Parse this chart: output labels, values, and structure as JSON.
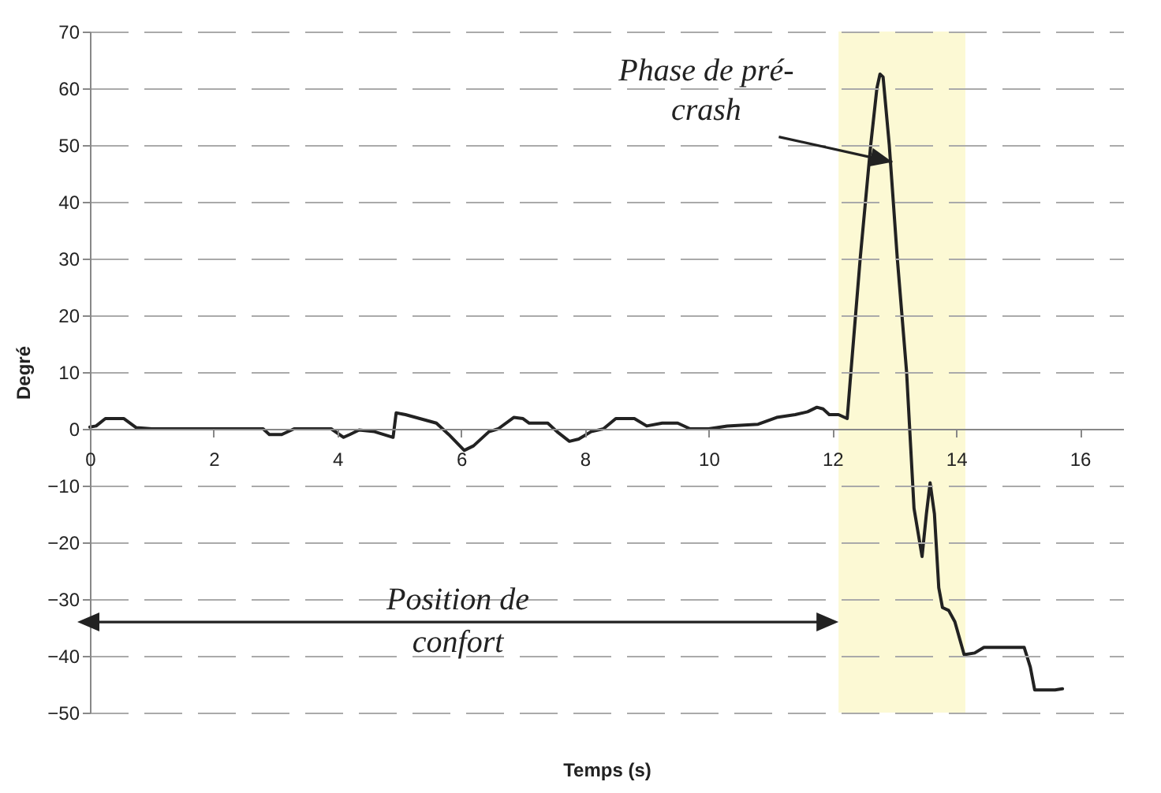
{
  "chart_data": {
    "type": "line",
    "xlabel": "Temps (s)",
    "ylabel": "Degré",
    "xlim": [
      0,
      16.7
    ],
    "xticks": [
      0,
      2,
      4,
      6,
      8,
      10,
      12,
      14,
      16
    ],
    "ylim": [
      -50,
      70
    ],
    "yticks": [
      -50,
      -40,
      -30,
      -20,
      -10,
      0,
      10,
      20,
      30,
      40,
      50,
      60,
      70
    ],
    "grid": "y",
    "series": [
      {
        "color": "#222222",
        "x": [
          0,
          0.1,
          0.25,
          0.55,
          0.75,
          1,
          2,
          2.8,
          2.9,
          3.1,
          3.3,
          3.9,
          4.1,
          4.2,
          4.35,
          4.6,
          4.9,
          4.95,
          5.1,
          5.6,
          5.8,
          6.05,
          6.2,
          6.45,
          6.6,
          6.85,
          7.0,
          7.1,
          7.4,
          7.55,
          7.75,
          7.9,
          8.1,
          8.3,
          8.5,
          8.8,
          9,
          9.25,
          9.5,
          9.7,
          10,
          10.3,
          10.8,
          11.1,
          11.4,
          11.6,
          11.75,
          11.85,
          11.95,
          12.1,
          12.24,
          12.3,
          12.45,
          12.62,
          12.72,
          12.77,
          12.82,
          12.92,
          13.05,
          13.2,
          13.25,
          13.32,
          13.45,
          13.52,
          13.58,
          13.65,
          13.72,
          13.78,
          13.88,
          13.98,
          14.13,
          14.3,
          14.45,
          15.1,
          15.2,
          15.27,
          15.6,
          15.72
        ],
        "values": [
          0.3,
          0.5,
          1.8,
          1.8,
          0.2,
          0,
          0,
          0,
          -1,
          -1,
          0,
          0,
          -1.5,
          -1,
          -0.2,
          -0.5,
          -1.5,
          2.8,
          2.5,
          1,
          -1,
          -3.8,
          -3,
          -0.5,
          0,
          2,
          1.8,
          1,
          1,
          -0.5,
          -2.2,
          -1.8,
          -0.5,
          0,
          1.8,
          1.8,
          0.5,
          1,
          1,
          0,
          0,
          0.5,
          0.8,
          2,
          2.5,
          3,
          3.8,
          3.5,
          2.5,
          2.5,
          1.8,
          10,
          30,
          50,
          60,
          62.5,
          62,
          50,
          30,
          10,
          0,
          -14,
          -22.5,
          -15,
          -9.5,
          -15,
          -28,
          -31.5,
          -32,
          -34,
          -39.8,
          -39.5,
          -38.5,
          -38.5,
          -42,
          -46,
          -46,
          -45.8
        ]
      }
    ],
    "bands": [
      {
        "axis": "x",
        "from": 12.1,
        "to": 14.15,
        "color": "#fcf9d4"
      }
    ],
    "annotations": [
      {
        "text": "Phase de pré-crash",
        "x": 12.97,
        "y": 47
      },
      "Position de confort"
    ]
  }
}
